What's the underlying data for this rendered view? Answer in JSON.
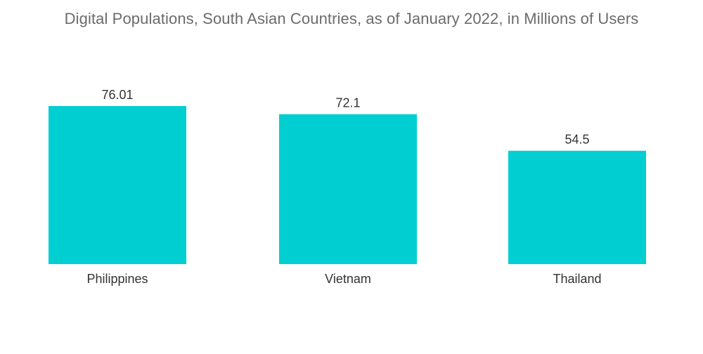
{
  "chart_data": {
    "type": "bar",
    "title": "Digital Populations, South Asian Countries, as of January 2022, in Millions of Users",
    "xlabel": "",
    "ylabel": "",
    "categories": [
      "Philippines",
      "Vietnam",
      "Thailand"
    ],
    "values": [
      76.01,
      72.1,
      54.5
    ],
    "value_labels": [
      "76.01",
      "72.1",
      "54.5"
    ],
    "ylim": [
      0,
      76.01
    ],
    "grid": false,
    "legend": "none",
    "colors": {
      "bar": "#00CED1"
    }
  }
}
